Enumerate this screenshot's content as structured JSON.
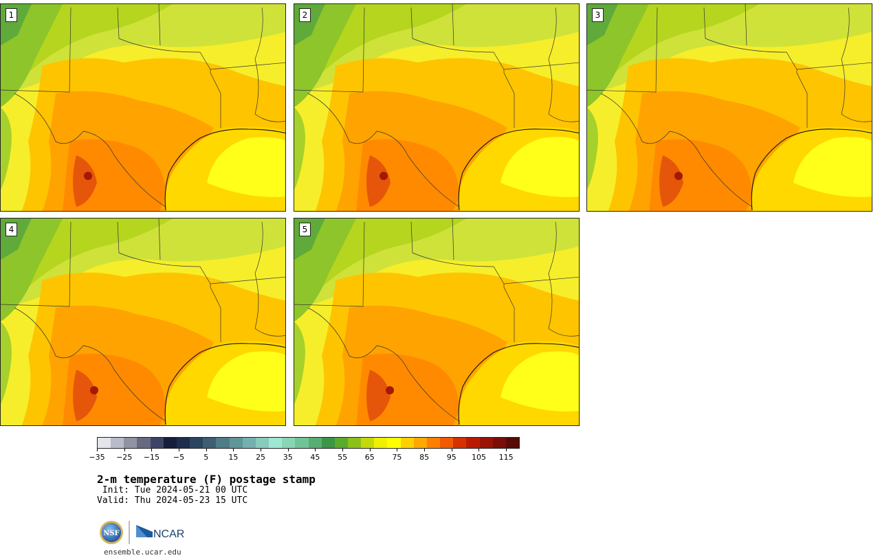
{
  "panels": [
    {
      "label": "1"
    },
    {
      "label": "2"
    },
    {
      "label": "3"
    },
    {
      "label": "4"
    },
    {
      "label": "5"
    }
  ],
  "colorbar": {
    "colors": [
      "#e3e5ea",
      "#b9bcc8",
      "#8f93a4",
      "#676b82",
      "#3d4466",
      "#161e3c",
      "#1e2d4d",
      "#2b4460",
      "#3e5e71",
      "#4f7c87",
      "#5f969a",
      "#74b1ae",
      "#88cbbd",
      "#9ee8d2",
      "#88d6b5",
      "#70c497",
      "#56ae74",
      "#3d9548",
      "#5aab2c",
      "#8cc119",
      "#c4d90a",
      "#eff000",
      "#ffff00",
      "#ffd000",
      "#ffa800",
      "#ff8000",
      "#f05a00",
      "#d63100",
      "#b81b00",
      "#9a1205",
      "#7a0e06",
      "#5a0a04"
    ],
    "min": -35,
    "max": 120,
    "ticks": [
      {
        "value": -35,
        "label": "−35"
      },
      {
        "value": -25,
        "label": "−25"
      },
      {
        "value": -15,
        "label": "−15"
      },
      {
        "value": -5,
        "label": "−5"
      },
      {
        "value": 5,
        "label": "5"
      },
      {
        "value": 15,
        "label": "15"
      },
      {
        "value": 25,
        "label": "25"
      },
      {
        "value": 35,
        "label": "35"
      },
      {
        "value": 45,
        "label": "45"
      },
      {
        "value": 55,
        "label": "55"
      },
      {
        "value": 65,
        "label": "65"
      },
      {
        "value": 75,
        "label": "75"
      },
      {
        "value": 85,
        "label": "85"
      },
      {
        "value": 95,
        "label": "95"
      },
      {
        "value": 105,
        "label": "105"
      },
      {
        "value": 115,
        "label": "115"
      }
    ]
  },
  "title": "2-m temperature (F) postage stamp",
  "init": " Init: Tue 2024-05-21 00 UTC",
  "valid": "Valid: Thu 2024-05-23 15 UTC",
  "logos": {
    "nsf": "NSF",
    "ncar": "NCAR"
  },
  "url": "ensemble.ucar.edu"
}
